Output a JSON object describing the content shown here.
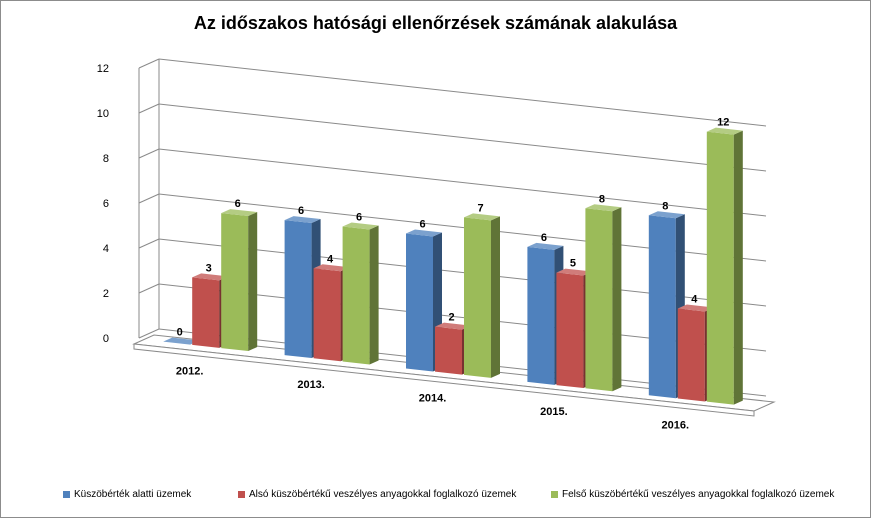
{
  "chart_data": {
    "type": "bar",
    "title": "Az időszakos hatósági ellenőrzések számának alakulása",
    "categories": [
      "2012.",
      "2013.",
      "2014.",
      "2015.",
      "2016."
    ],
    "series": [
      {
        "name": "Küszöbérték alatti üzemek",
        "values": [
          0,
          6,
          6,
          6,
          8
        ],
        "color": "#4f81bd"
      },
      {
        "name": "Alsó küszöbértékű veszélyes anyagokkal foglalkozó üzemek",
        "values": [
          3,
          4,
          2,
          5,
          4
        ],
        "color": "#c0504d"
      },
      {
        "name": "Felső küszöbértékű veszélyes anyagokkal foglalkozó üzemek",
        "values": [
          6,
          6,
          7,
          8,
          12
        ],
        "color": "#9bbb59"
      }
    ],
    "yticks": [
      "0",
      "2",
      "4",
      "6",
      "8",
      "10",
      "12"
    ],
    "ylim": [
      0,
      12
    ],
    "grid": true,
    "legend": "bottom"
  }
}
